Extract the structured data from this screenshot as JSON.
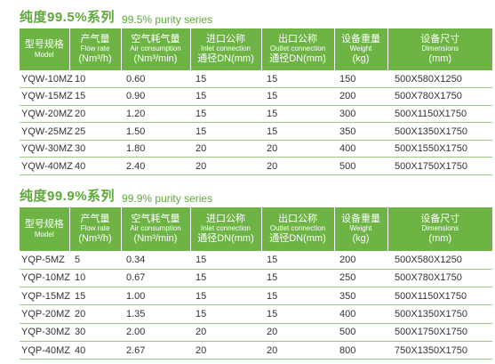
{
  "sections": [
    {
      "title_zh": "纯度99.5%系列",
      "title_en": "99.5% purity series",
      "headers": [
        {
          "zh": "型号规格",
          "en": "Model",
          "unit": ""
        },
        {
          "zh": "产气量",
          "en": "Flow rate",
          "unit": "(Nm³/h)"
        },
        {
          "zh": "空气耗气量",
          "en": "Air consumption",
          "unit": "(Nm³/min)"
        },
        {
          "zh": "进口公称",
          "en": "Inlet connection",
          "unit": "通径DN(mm)"
        },
        {
          "zh": "出口公称",
          "en": "Outlet connection",
          "unit": "通径DN(mm)"
        },
        {
          "zh": "设备重量",
          "en": "Weight",
          "unit": "(kg)"
        },
        {
          "zh": "设备尺寸",
          "en": "Dimensions",
          "unit": "(mm)"
        }
      ],
      "rows": [
        [
          "YQW-10MZ",
          "10",
          "0.60",
          "15",
          "15",
          "150",
          "500X580X1250"
        ],
        [
          "YQW-15MZ",
          "15",
          "0.90",
          "15",
          "15",
          "200",
          "500X780X1750"
        ],
        [
          "YQW-20MZ",
          "20",
          "1.20",
          "15",
          "15",
          "300",
          "500X1150X1750"
        ],
        [
          "YQW-25MZ",
          "25",
          "1.50",
          "15",
          "15",
          "350",
          "500X1350X1750"
        ],
        [
          "YQW-30MZ",
          "30",
          "1.80",
          "20",
          "20",
          "400",
          "500X1550X1750"
        ],
        [
          "YQW-40MZ",
          "40",
          "2.40",
          "20",
          "20",
          "500",
          "500X1750X1750"
        ]
      ]
    },
    {
      "title_zh": "纯度99.9%系列",
      "title_en": "99.9% purity series",
      "headers": [
        {
          "zh": "型号规格",
          "en": "Model",
          "unit": ""
        },
        {
          "zh": "产气量",
          "en": "Flow rate",
          "unit": "(Nm³/h)"
        },
        {
          "zh": "空气耗气量",
          "en": "Air consumption",
          "unit": "(Nm³/min)"
        },
        {
          "zh": "进口公称",
          "en": "Inlet connection",
          "unit": "通径DN(mm)"
        },
        {
          "zh": "出口公称",
          "en": "Outlet connection",
          "unit": "通径DN(mm)"
        },
        {
          "zh": "设备重量",
          "en": "Weight",
          "unit": "(kg)"
        },
        {
          "zh": "设备尺寸",
          "en": "Dimensions",
          "unit": "(mm)"
        }
      ],
      "rows": [
        [
          "YQP-5MZ",
          "5",
          "0.34",
          "15",
          "15",
          "200",
          "500X580X1250"
        ],
        [
          "YQP-10MZ",
          "10",
          "0.67",
          "15",
          "15",
          "250",
          "500X780X1750"
        ],
        [
          "YQP-15MZ",
          "15",
          "1.00",
          "15",
          "15",
          "350",
          "500X1150X1750"
        ],
        [
          "YQP-20MZ",
          "20",
          "1.35",
          "15",
          "15",
          "400",
          "500X1350X1750"
        ],
        [
          "YQP-30MZ",
          "30",
          "2.00",
          "20",
          "20",
          "500",
          "500X1750X1750"
        ],
        [
          "YQP-40MZ",
          "40",
          "2.67",
          "20",
          "20",
          "800",
          "750X1350X1750"
        ]
      ]
    }
  ]
}
